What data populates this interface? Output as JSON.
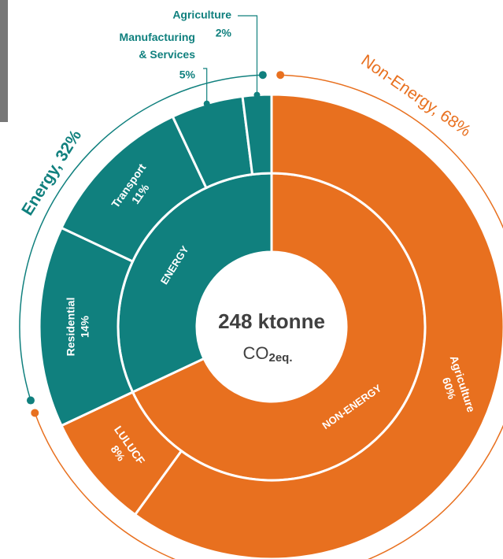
{
  "chart_data": {
    "type": "sunburst",
    "center_label": "248 ktonne",
    "center_unit": "CO",
    "center_unit_sub": "2eq.",
    "inner": {
      "categories": [
        "NON-ENERGY",
        "ENERGY"
      ],
      "values": [
        68,
        32
      ],
      "colors": [
        "#e8701f",
        "#10807e"
      ]
    },
    "groups": {
      "labels": [
        "Non-Energy, 68%",
        "Energy, 32%"
      ]
    },
    "outer": {
      "categories": [
        "Agriculture",
        "LULUCF",
        "Residential",
        "Transport",
        "Manufacturing & Services",
        "Agriculture"
      ],
      "values": [
        60,
        8,
        14,
        11,
        5,
        2
      ],
      "value_labels": [
        "60%",
        "8%",
        "14%",
        "11%",
        "5%",
        "2%"
      ],
      "parents": [
        0,
        0,
        1,
        1,
        1,
        1
      ]
    }
  }
}
